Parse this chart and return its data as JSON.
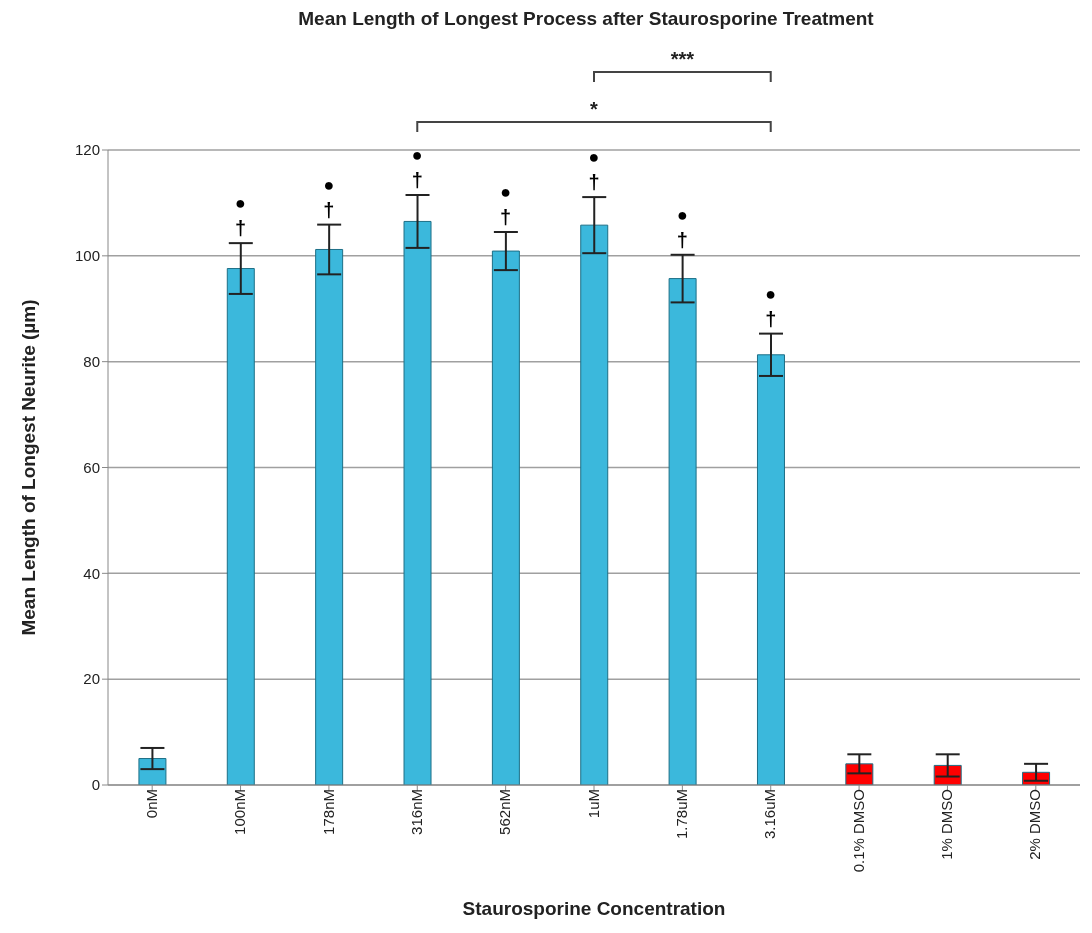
{
  "chart_data": {
    "type": "bar",
    "title": "Mean Length of Longest Process after Staurosporine Treatment",
    "xlabel": "Staurosporine Concentration",
    "ylabel": "Mean Length of Longest Neurite (µm)",
    "categories": [
      "0nM",
      "100nM",
      "178nM",
      "316nM",
      "562nM",
      "1uM",
      "1.78uM",
      "3.16uM",
      "0.1% DMSO",
      "1% DMSO",
      "2% DMSO"
    ],
    "values": [
      5.0,
      97.6,
      101.2,
      106.5,
      100.9,
      105.8,
      95.7,
      81.3,
      4.0,
      3.7,
      2.4
    ],
    "errors": [
      2.0,
      4.8,
      4.7,
      5.0,
      3.6,
      5.3,
      4.5,
      4.0,
      1.8,
      2.1,
      1.6
    ],
    "colors": [
      "#3bb8dc",
      "#3bb8dc",
      "#3bb8dc",
      "#3bb8dc",
      "#3bb8dc",
      "#3bb8dc",
      "#3bb8dc",
      "#3bb8dc",
      "#ff0000",
      "#ff0000",
      "#ff0000"
    ],
    "ylim": [
      0,
      120
    ],
    "yticks": [
      0,
      20,
      40,
      60,
      80,
      100,
      120
    ],
    "grid": "y",
    "annotations": [
      "†",
      "●",
      "†",
      "●",
      "†",
      "●",
      "†",
      "●",
      "†",
      "●",
      "†",
      "●",
      "†",
      "●",
      "***",
      "*"
    ]
  }
}
